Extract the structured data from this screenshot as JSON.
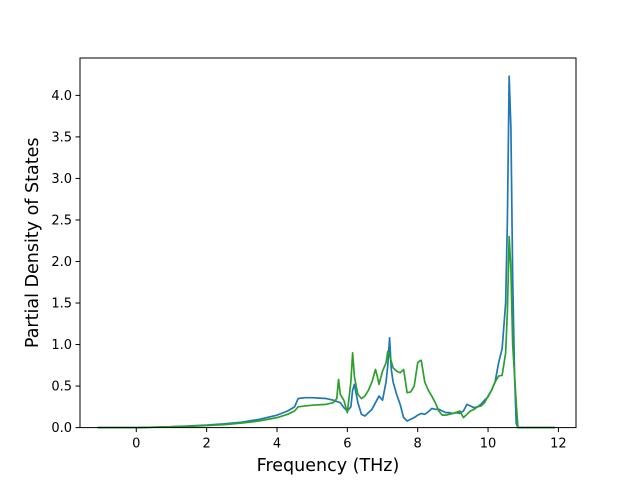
{
  "chart_data": {
    "type": "line",
    "title": "",
    "xlabel": "Frequency (THz)",
    "ylabel": "Partial Density of States",
    "xlim": [
      -1.6,
      12.5
    ],
    "ylim": [
      0.0,
      4.45
    ],
    "xticks": [
      0,
      2,
      4,
      6,
      8,
      10,
      12
    ],
    "xtick_labels": [
      "0",
      "2",
      "4",
      "6",
      "8",
      "10",
      "12"
    ],
    "yticks": [
      0.0,
      0.5,
      1.0,
      1.5,
      2.0,
      2.5,
      3.0,
      3.5,
      4.0
    ],
    "ytick_labels": [
      "0.0",
      "0.5",
      "1.0",
      "1.5",
      "2.0",
      "2.5",
      "3.0",
      "3.5",
      "4.0"
    ],
    "grid": false,
    "legend": "none",
    "series": [
      {
        "color": "#1f77b4",
        "x": [
          -1.1,
          -0.5,
          0.0,
          0.5,
          1.0,
          1.5,
          2.0,
          2.5,
          3.0,
          3.5,
          4.0,
          4.3,
          4.5,
          4.6,
          4.8,
          5.0,
          5.2,
          5.4,
          5.6,
          5.8,
          5.9,
          6.0,
          6.1,
          6.15,
          6.2,
          6.3,
          6.4,
          6.5,
          6.6,
          6.7,
          6.8,
          6.9,
          7.0,
          7.1,
          7.15,
          7.2,
          7.25,
          7.3,
          7.4,
          7.5,
          7.6,
          7.7,
          7.8,
          7.9,
          8.0,
          8.1,
          8.2,
          8.3,
          8.4,
          8.5,
          8.6,
          8.7,
          8.8,
          8.9,
          9.0,
          9.1,
          9.2,
          9.3,
          9.4,
          9.5,
          9.6,
          9.7,
          9.8,
          9.9,
          10.0,
          10.1,
          10.2,
          10.3,
          10.4,
          10.5,
          10.55,
          10.6,
          10.65,
          10.7,
          10.75,
          10.8,
          10.85,
          11.0,
          11.5,
          11.9
        ],
        "values": [
          0.0,
          0.0,
          0.0,
          0.005,
          0.01,
          0.02,
          0.03,
          0.045,
          0.065,
          0.1,
          0.15,
          0.2,
          0.25,
          0.35,
          0.36,
          0.36,
          0.355,
          0.35,
          0.33,
          0.3,
          0.24,
          0.2,
          0.25,
          0.45,
          0.52,
          0.3,
          0.16,
          0.14,
          0.18,
          0.22,
          0.3,
          0.38,
          0.33,
          0.55,
          0.75,
          1.08,
          0.7,
          0.55,
          0.4,
          0.28,
          0.12,
          0.08,
          0.1,
          0.12,
          0.15,
          0.17,
          0.16,
          0.19,
          0.23,
          0.22,
          0.22,
          0.2,
          0.18,
          0.18,
          0.17,
          0.18,
          0.17,
          0.2,
          0.28,
          0.26,
          0.24,
          0.25,
          0.28,
          0.33,
          0.37,
          0.45,
          0.55,
          0.78,
          0.95,
          1.5,
          2.5,
          4.23,
          3.6,
          1.8,
          0.7,
          0.05,
          0.0,
          0.0,
          0.0,
          0.0
        ]
      },
      {
        "color": "#2ca02c",
        "x": [
          -1.1,
          -0.5,
          0.0,
          0.5,
          1.0,
          1.5,
          2.0,
          2.5,
          3.0,
          3.5,
          4.0,
          4.3,
          4.5,
          4.6,
          5.0,
          5.4,
          5.6,
          5.7,
          5.75,
          5.8,
          5.9,
          6.0,
          6.1,
          6.15,
          6.2,
          6.25,
          6.3,
          6.4,
          6.5,
          6.6,
          6.7,
          6.8,
          6.85,
          6.9,
          7.0,
          7.1,
          7.15,
          7.2,
          7.3,
          7.4,
          7.5,
          7.6,
          7.7,
          7.8,
          7.9,
          8.0,
          8.05,
          8.1,
          8.2,
          8.3,
          8.4,
          8.5,
          8.6,
          8.7,
          8.8,
          9.0,
          9.2,
          9.3,
          9.4,
          9.5,
          9.6,
          9.7,
          9.8,
          9.9,
          10.0,
          10.1,
          10.2,
          10.3,
          10.4,
          10.5,
          10.55,
          10.6,
          10.65,
          10.7,
          10.8,
          10.85,
          11.0,
          11.5,
          11.9
        ],
        "values": [
          0.0,
          0.0,
          0.0,
          0.005,
          0.01,
          0.015,
          0.025,
          0.035,
          0.055,
          0.08,
          0.12,
          0.16,
          0.2,
          0.25,
          0.27,
          0.28,
          0.3,
          0.35,
          0.58,
          0.4,
          0.33,
          0.18,
          0.55,
          0.9,
          0.62,
          0.5,
          0.4,
          0.35,
          0.38,
          0.45,
          0.55,
          0.7,
          0.62,
          0.52,
          0.68,
          0.78,
          0.92,
          0.87,
          0.72,
          0.68,
          0.66,
          0.7,
          0.42,
          0.43,
          0.5,
          0.78,
          0.8,
          0.81,
          0.55,
          0.45,
          0.38,
          0.3,
          0.2,
          0.15,
          0.15,
          0.17,
          0.2,
          0.12,
          0.16,
          0.2,
          0.22,
          0.25,
          0.26,
          0.3,
          0.38,
          0.45,
          0.55,
          0.62,
          0.63,
          0.9,
          1.4,
          2.3,
          1.9,
          1.0,
          0.3,
          0.0,
          0.0,
          0.0,
          0.0
        ]
      }
    ]
  }
}
